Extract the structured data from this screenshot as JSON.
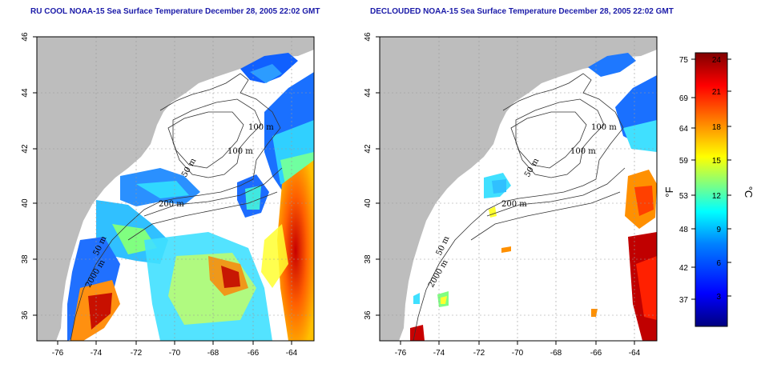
{
  "left_panel": {
    "title": "RU COOL NOAA-15 Sea Surface Temperature December 28, 2005 22:02 GMT"
  },
  "right_panel": {
    "title": "DECLOUDED NOAA-15 Sea Surface Temperature December 28, 2005 22:02 GMT"
  },
  "axes": {
    "x_ticks": [
      "-76",
      "-74",
      "-72",
      "-70",
      "-68",
      "-66",
      "-64"
    ],
    "y_ticks": [
      "46",
      "44",
      "42",
      "40",
      "38",
      "36"
    ]
  },
  "contour_labels": {
    "left": [
      "100 m",
      "100 m",
      "50 m",
      "200 m",
      "50 m",
      "2000 m"
    ],
    "right": [
      "100 m",
      "100 m",
      "50 m",
      "200 m",
      "50 m",
      "2000 m"
    ]
  },
  "colorbar": {
    "fahrenheit_ticks": [
      "75",
      "69",
      "64",
      "59",
      "53",
      "48",
      "42",
      "37"
    ],
    "celsius_ticks": [
      "24",
      "21",
      "18",
      "15",
      "12",
      "9",
      "6",
      "3"
    ],
    "left_unit": "°F",
    "right_unit": "°C",
    "colors": [
      "#00007f",
      "#0000ff",
      "#0080ff",
      "#00ffff",
      "#80ff80",
      "#ffff00",
      "#ff8000",
      "#ff0000",
      "#7f0000"
    ]
  },
  "colors": {
    "land": "#bdbdbd",
    "title": "#1a1aa8"
  }
}
